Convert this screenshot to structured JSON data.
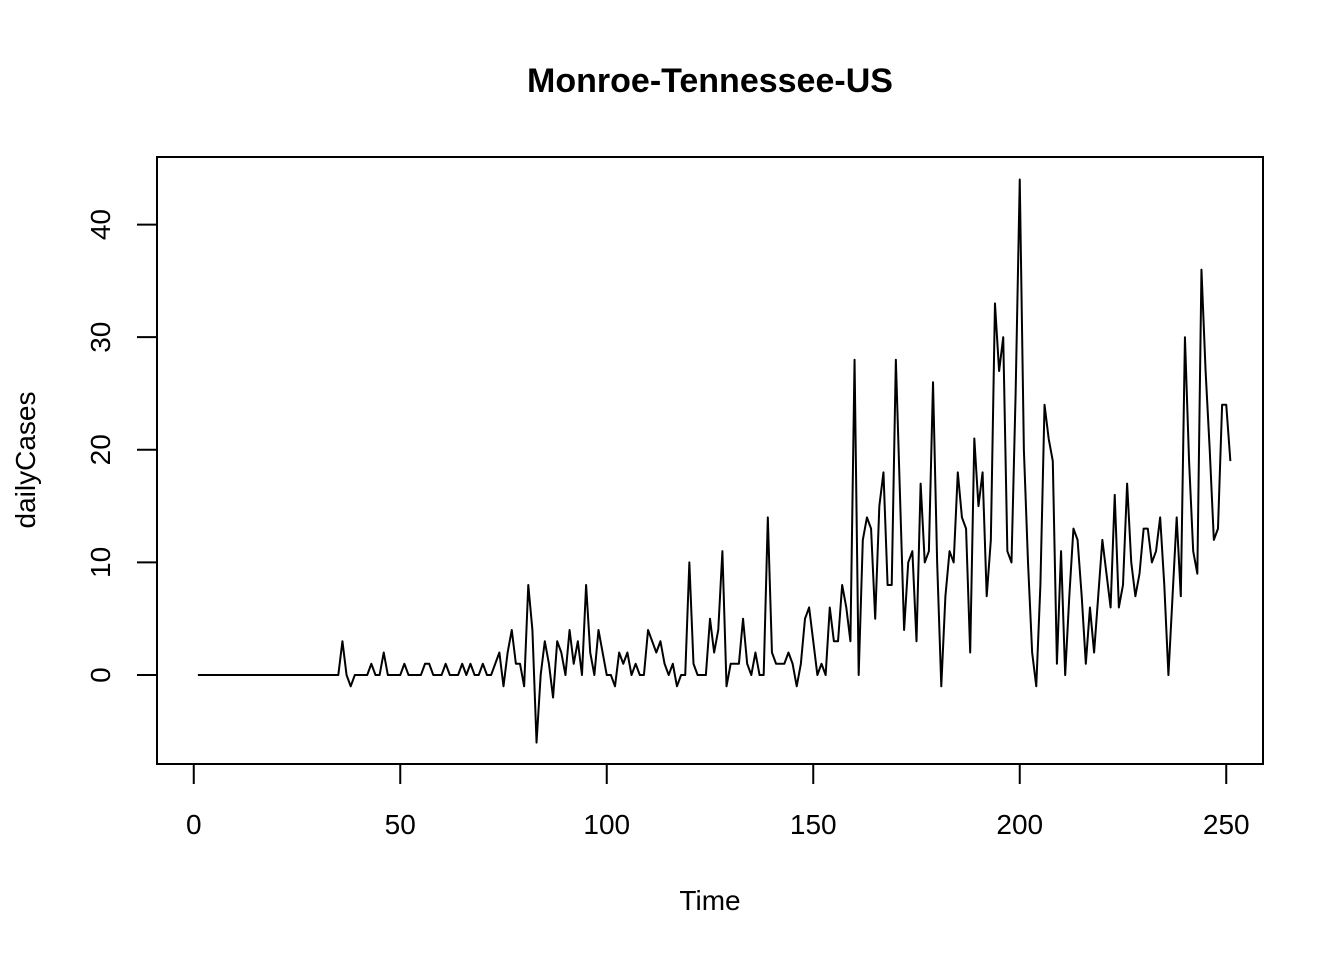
{
  "chart_data": {
    "type": "line",
    "title": "Monroe-Tennessee-US",
    "xlabel": "Time",
    "ylabel": "dailyCases",
    "xlim": [
      -8.9,
      258.9
    ],
    "ylim": [
      -7.9,
      46.0
    ],
    "x_ticks": [
      0,
      50,
      100,
      150,
      200,
      250
    ],
    "y_ticks": [
      0,
      10,
      20,
      30,
      40
    ],
    "grid": false,
    "legend": "none",
    "x_start": 1,
    "series": [
      {
        "values": [
          0,
          0,
          0,
          0,
          0,
          0,
          0,
          0,
          0,
          0,
          0,
          0,
          0,
          0,
          0,
          0,
          0,
          0,
          0,
          0,
          0,
          0,
          0,
          0,
          0,
          0,
          0,
          0,
          0,
          0,
          0,
          0,
          0,
          0,
          0,
          3,
          0,
          -1,
          0,
          0,
          0,
          0,
          1,
          0,
          0,
          2,
          0,
          0,
          0,
          0,
          1,
          0,
          0,
          0,
          0,
          1,
          1,
          0,
          0,
          0,
          1,
          0,
          0,
          0,
          1,
          0,
          1,
          0,
          0,
          1,
          0,
          0,
          1,
          2,
          -1,
          2,
          4,
          1,
          1,
          -1,
          8,
          4,
          -6,
          0,
          3,
          1,
          -2,
          3,
          2,
          0,
          4,
          1,
          3,
          0,
          8,
          2,
          0,
          4,
          2,
          0,
          0,
          -1,
          2,
          1,
          2,
          0,
          1,
          0,
          0,
          4,
          3,
          2,
          3,
          1,
          0,
          1,
          -1,
          0,
          0,
          10,
          1,
          0,
          0,
          0,
          5,
          2,
          4,
          11,
          -1,
          1,
          1,
          1,
          5,
          1,
          0,
          2,
          0,
          0,
          14,
          2,
          1,
          1,
          1,
          2,
          1,
          -1,
          1,
          5,
          6,
          3,
          0,
          1,
          0,
          6,
          3,
          3,
          8,
          6,
          3,
          28,
          0,
          12,
          14,
          13,
          5,
          15,
          18,
          8,
          8,
          28,
          16,
          4,
          10,
          11,
          3,
          17,
          10,
          11,
          26,
          10,
          -1,
          7,
          11,
          10,
          18,
          14,
          13,
          2,
          21,
          15,
          18,
          7,
          12,
          33,
          27,
          30,
          11,
          10,
          25,
          44,
          20,
          10,
          2,
          -1,
          8,
          24,
          21,
          19,
          1,
          11,
          0,
          7,
          13,
          12,
          7,
          1,
          6,
          2,
          7,
          12,
          9,
          6,
          16,
          6,
          8,
          17,
          10,
          7,
          9,
          13,
          13,
          10,
          11,
          14,
          8,
          0,
          7,
          14,
          7,
          30,
          19,
          11,
          9,
          36,
          27,
          20,
          12,
          13,
          24,
          24,
          19
        ]
      }
    ]
  }
}
